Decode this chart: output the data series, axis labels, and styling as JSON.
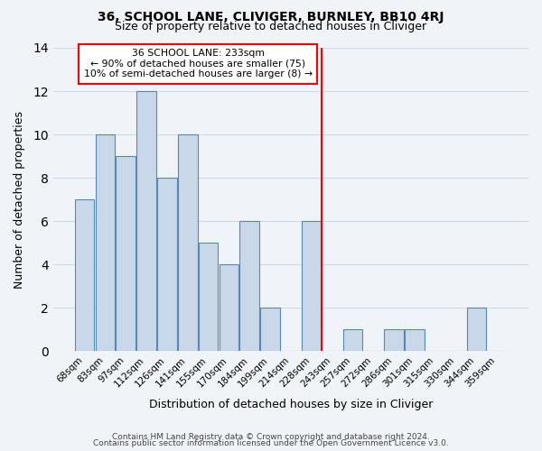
{
  "title": "36, SCHOOL LANE, CLIVIGER, BURNLEY, BB10 4RJ",
  "subtitle": "Size of property relative to detached houses in Cliviger",
  "xlabel": "Distribution of detached houses by size in Cliviger",
  "ylabel": "Number of detached properties",
  "bar_labels": [
    "68sqm",
    "83sqm",
    "97sqm",
    "112sqm",
    "126sqm",
    "141sqm",
    "155sqm",
    "170sqm",
    "184sqm",
    "199sqm",
    "214sqm",
    "228sqm",
    "243sqm",
    "257sqm",
    "272sqm",
    "286sqm",
    "301sqm",
    "315sqm",
    "330sqm",
    "344sqm",
    "359sqm"
  ],
  "bar_values": [
    7,
    10,
    9,
    12,
    8,
    10,
    5,
    4,
    6,
    2,
    0,
    6,
    0,
    1,
    0,
    1,
    1,
    0,
    0,
    2,
    0
  ],
  "bar_color": "#c8d8e8",
  "bar_edge_color": "#5588bb",
  "grid_color": "#ccddee",
  "background_color": "#f0f4f8",
  "red_line_x": 11.5,
  "annotation_title": "36 SCHOOL LANE: 233sqm",
  "annotation_line1": "← 90% of detached houses are smaller (75)",
  "annotation_line2": "10% of semi-detached houses are larger (8) →",
  "ylim": [
    0,
    14
  ],
  "yticks": [
    0,
    2,
    4,
    6,
    8,
    10,
    12,
    14
  ],
  "footnote1": "Contains HM Land Registry data © Crown copyright and database right 2024.",
  "footnote2": "Contains public sector information licensed under the Open Government Licence v3.0."
}
